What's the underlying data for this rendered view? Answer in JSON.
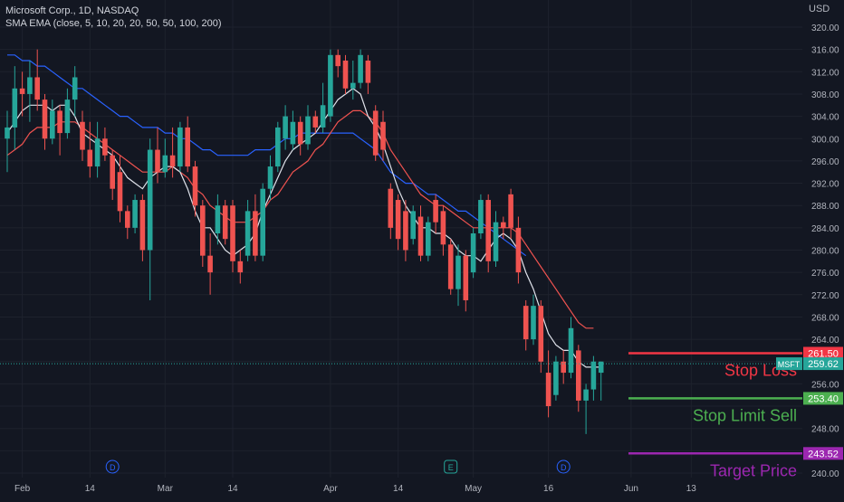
{
  "header": {
    "title": "Microsoft Corp., 1D, NASDAQ",
    "indicator": "SMA EMA (close, 5, 10, 20, 20, 50, 50, 100, 200)"
  },
  "currency": "USD",
  "colors": {
    "background": "#131722",
    "up": "#26a69a",
    "down": "#ef5350",
    "ma_white": "#e0e3eb",
    "ma_red": "#f05350",
    "ma_blue": "#2962ff",
    "stop_loss": "#f23645",
    "stop_limit": "#4caf50",
    "target": "#9c27b0",
    "price": "#26a69a"
  },
  "chart_data": {
    "type": "candlestick",
    "ylim": [
      238,
      322
    ],
    "y_ticks": [
      240,
      244,
      248,
      252,
      256,
      260,
      264,
      268,
      272,
      276,
      280,
      284,
      288,
      292,
      296,
      300,
      304,
      308,
      312,
      316,
      320
    ],
    "x_ticks": [
      {
        "label": "Feb",
        "index": 2
      },
      {
        "label": "14",
        "index": 11
      },
      {
        "label": "Mar",
        "index": 21
      },
      {
        "label": "14",
        "index": 30
      },
      {
        "label": "Apr",
        "index": 43
      },
      {
        "label": "14",
        "index": 52
      },
      {
        "label": "May",
        "index": 62
      },
      {
        "label": "16",
        "index": 72
      },
      {
        "label": "Jun",
        "index": 83
      },
      {
        "label": "13",
        "index": 91
      }
    ],
    "event_markers": [
      {
        "label": "D",
        "index": 14
      },
      {
        "label": "E",
        "index": 59
      },
      {
        "label": "D",
        "index": 74
      }
    ],
    "candles": [
      {
        "o": 300,
        "h": 305,
        "l": 294,
        "c": 302
      },
      {
        "o": 302,
        "h": 313,
        "l": 298,
        "c": 309
      },
      {
        "o": 309,
        "h": 312,
        "l": 304,
        "c": 308
      },
      {
        "o": 308,
        "h": 314,
        "l": 303,
        "c": 311
      },
      {
        "o": 311,
        "h": 316,
        "l": 305,
        "c": 307
      },
      {
        "o": 307,
        "h": 308,
        "l": 298,
        "c": 300
      },
      {
        "o": 300,
        "h": 307,
        "l": 299,
        "c": 305
      },
      {
        "o": 305,
        "h": 306,
        "l": 297,
        "c": 301
      },
      {
        "o": 301,
        "h": 309,
        "l": 300,
        "c": 307
      },
      {
        "o": 307,
        "h": 313,
        "l": 304,
        "c": 311
      },
      {
        "o": 303,
        "h": 305,
        "l": 296,
        "c": 298
      },
      {
        "o": 298,
        "h": 303,
        "l": 293,
        "c": 295
      },
      {
        "o": 295,
        "h": 303,
        "l": 293,
        "c": 300
      },
      {
        "o": 300,
        "h": 302,
        "l": 296,
        "c": 297
      },
      {
        "o": 297,
        "h": 298,
        "l": 289,
        "c": 291
      },
      {
        "o": 294,
        "h": 297,
        "l": 285,
        "c": 287
      },
      {
        "o": 287,
        "h": 288,
        "l": 282,
        "c": 284
      },
      {
        "o": 284,
        "h": 290,
        "l": 283,
        "c": 289
      },
      {
        "o": 289,
        "h": 290,
        "l": 278,
        "c": 280
      },
      {
        "o": 280,
        "h": 300,
        "l": 271,
        "c": 298
      },
      {
        "o": 298,
        "h": 302,
        "l": 292,
        "c": 294
      },
      {
        "o": 294,
        "h": 300,
        "l": 293,
        "c": 297
      },
      {
        "o": 297,
        "h": 302,
        "l": 293,
        "c": 295
      },
      {
        "o": 295,
        "h": 303,
        "l": 294,
        "c": 302
      },
      {
        "o": 302,
        "h": 304,
        "l": 294,
        "c": 295
      },
      {
        "o": 295,
        "h": 296,
        "l": 286,
        "c": 288
      },
      {
        "o": 288,
        "h": 289,
        "l": 277,
        "c": 279
      },
      {
        "o": 279,
        "h": 283,
        "l": 272,
        "c": 276
      },
      {
        "o": 283,
        "h": 290,
        "l": 281,
        "c": 288
      },
      {
        "o": 288,
        "h": 289,
        "l": 281,
        "c": 282
      },
      {
        "o": 288,
        "h": 289,
        "l": 276,
        "c": 278
      },
      {
        "o": 278,
        "h": 280,
        "l": 274,
        "c": 276
      },
      {
        "o": 279,
        "h": 289,
        "l": 278,
        "c": 287
      },
      {
        "o": 287,
        "h": 290,
        "l": 278,
        "c": 279
      },
      {
        "o": 279,
        "h": 292,
        "l": 278,
        "c": 291
      },
      {
        "o": 291,
        "h": 297,
        "l": 289,
        "c": 295
      },
      {
        "o": 295,
        "h": 303,
        "l": 294,
        "c": 302
      },
      {
        "o": 300,
        "h": 306,
        "l": 298,
        "c": 304
      },
      {
        "o": 299,
        "h": 305,
        "l": 298,
        "c": 303
      },
      {
        "o": 303,
        "h": 304,
        "l": 297,
        "c": 299
      },
      {
        "o": 299,
        "h": 306,
        "l": 298,
        "c": 304
      },
      {
        "o": 304,
        "h": 305,
        "l": 301,
        "c": 302
      },
      {
        "o": 302,
        "h": 310,
        "l": 301,
        "c": 306
      },
      {
        "o": 304,
        "h": 316,
        "l": 303,
        "c": 315
      },
      {
        "o": 315,
        "h": 316,
        "l": 311,
        "c": 313
      },
      {
        "o": 314,
        "h": 315,
        "l": 308,
        "c": 309
      },
      {
        "o": 309,
        "h": 314,
        "l": 307,
        "c": 310
      },
      {
        "o": 310,
        "h": 316,
        "l": 309,
        "c": 315
      },
      {
        "o": 314,
        "h": 315,
        "l": 308,
        "c": 310
      },
      {
        "o": 305,
        "h": 306,
        "l": 296,
        "c": 297
      },
      {
        "o": 303,
        "h": 305,
        "l": 296,
        "c": 298
      },
      {
        "o": 291,
        "h": 292,
        "l": 282,
        "c": 284
      },
      {
        "o": 289,
        "h": 290,
        "l": 280,
        "c": 282
      },
      {
        "o": 287,
        "h": 289,
        "l": 278,
        "c": 280
      },
      {
        "o": 282,
        "h": 288,
        "l": 281,
        "c": 287
      },
      {
        "o": 286,
        "h": 288,
        "l": 278,
        "c": 279
      },
      {
        "o": 279,
        "h": 286,
        "l": 278,
        "c": 285
      },
      {
        "o": 289,
        "h": 290,
        "l": 283,
        "c": 285
      },
      {
        "o": 287,
        "h": 288,
        "l": 279,
        "c": 281
      },
      {
        "o": 281,
        "h": 282,
        "l": 272,
        "c": 273
      },
      {
        "o": 273,
        "h": 281,
        "l": 270,
        "c": 279
      },
      {
        "o": 279,
        "h": 280,
        "l": 269,
        "c": 271
      },
      {
        "o": 276,
        "h": 284,
        "l": 275,
        "c": 283
      },
      {
        "o": 283,
        "h": 290,
        "l": 282,
        "c": 289
      },
      {
        "o": 289,
        "h": 290,
        "l": 276,
        "c": 278
      },
      {
        "o": 278,
        "h": 287,
        "l": 277,
        "c": 285
      },
      {
        "o": 285,
        "h": 286,
        "l": 282,
        "c": 284
      },
      {
        "o": 290,
        "h": 291,
        "l": 282,
        "c": 284
      },
      {
        "o": 284,
        "h": 286,
        "l": 274,
        "c": 276
      },
      {
        "o": 270,
        "h": 271,
        "l": 262,
        "c": 264
      },
      {
        "o": 264,
        "h": 272,
        "l": 263,
        "c": 270
      },
      {
        "o": 270,
        "h": 271,
        "l": 258,
        "c": 260
      },
      {
        "o": 258,
        "h": 262,
        "l": 250,
        "c": 252
      },
      {
        "o": 254,
        "h": 261,
        "l": 253,
        "c": 260
      },
      {
        "o": 260,
        "h": 262,
        "l": 256,
        "c": 258
      },
      {
        "o": 258,
        "h": 268,
        "l": 257,
        "c": 266
      },
      {
        "o": 262,
        "h": 263,
        "l": 251,
        "c": 253
      },
      {
        "o": 253,
        "h": 256,
        "l": 247,
        "c": 255
      },
      {
        "o": 255,
        "h": 261,
        "l": 253,
        "c": 260
      },
      {
        "o": 258,
        "h": 260,
        "l": 253,
        "c": 260
      }
    ],
    "ma_white": [
      301,
      303,
      305,
      306,
      306,
      306,
      305,
      306,
      306,
      304,
      301,
      300,
      299,
      298,
      297,
      295,
      293,
      292,
      291,
      293,
      294,
      295,
      295,
      294,
      291,
      287,
      284,
      284,
      282,
      280,
      279,
      280,
      281,
      283,
      287,
      290,
      293,
      296,
      298,
      299,
      300,
      301,
      303,
      305,
      307,
      308,
      309,
      308,
      304,
      302,
      299,
      295,
      291,
      288,
      286,
      284,
      284,
      283,
      283,
      282,
      280,
      279,
      279,
      278,
      280,
      282,
      283,
      282,
      280,
      276,
      273,
      269,
      265,
      263,
      262,
      262,
      260,
      259,
      259,
      259
    ],
    "ma_red": [
      297,
      298,
      299,
      301,
      302,
      302,
      302,
      303,
      303,
      303,
      302,
      301,
      300,
      299,
      298,
      297,
      296,
      295,
      294,
      294,
      294,
      294,
      295,
      294,
      293,
      291,
      290,
      288,
      287,
      286,
      285,
      285,
      285,
      286,
      287,
      289,
      290,
      292,
      294,
      295,
      296,
      298,
      299,
      301,
      303,
      304,
      305,
      305,
      304,
      303,
      301,
      298,
      296,
      294,
      292,
      290,
      289,
      288,
      288,
      287,
      286,
      285,
      284,
      284,
      284,
      284,
      284,
      284,
      283,
      281,
      279,
      277,
      275,
      273,
      271,
      269,
      267,
      266,
      266
    ],
    "ma_blue": [
      315,
      315,
      314,
      314,
      313,
      313,
      312,
      311,
      310,
      309,
      309,
      308,
      307,
      306,
      305,
      304,
      304,
      303,
      302,
      302,
      302,
      301,
      301,
      300,
      300,
      299,
      298,
      298,
      297,
      297,
      297,
      297,
      297,
      298,
      298,
      298,
      299,
      300,
      300,
      301,
      301,
      301,
      301,
      301,
      301,
      301,
      301,
      300,
      299,
      298,
      296,
      294,
      293,
      292,
      292,
      291,
      290,
      290,
      289,
      288,
      287,
      287,
      286,
      285,
      284,
      283,
      282,
      281,
      280,
      279
    ],
    "ma_blue_start": 0,
    "lines": [
      {
        "name": "Stop Loss",
        "value": 261.5,
        "badge": "261.50"
      },
      {
        "name": "Stop Limit Sell",
        "value": 253.4,
        "badge": "253.40"
      },
      {
        "name": "Target Price",
        "value": 243.52,
        "badge": "243.52"
      }
    ],
    "last_price": {
      "symbol": "MSFT",
      "value": 259.62,
      "badge": "259.62"
    }
  }
}
